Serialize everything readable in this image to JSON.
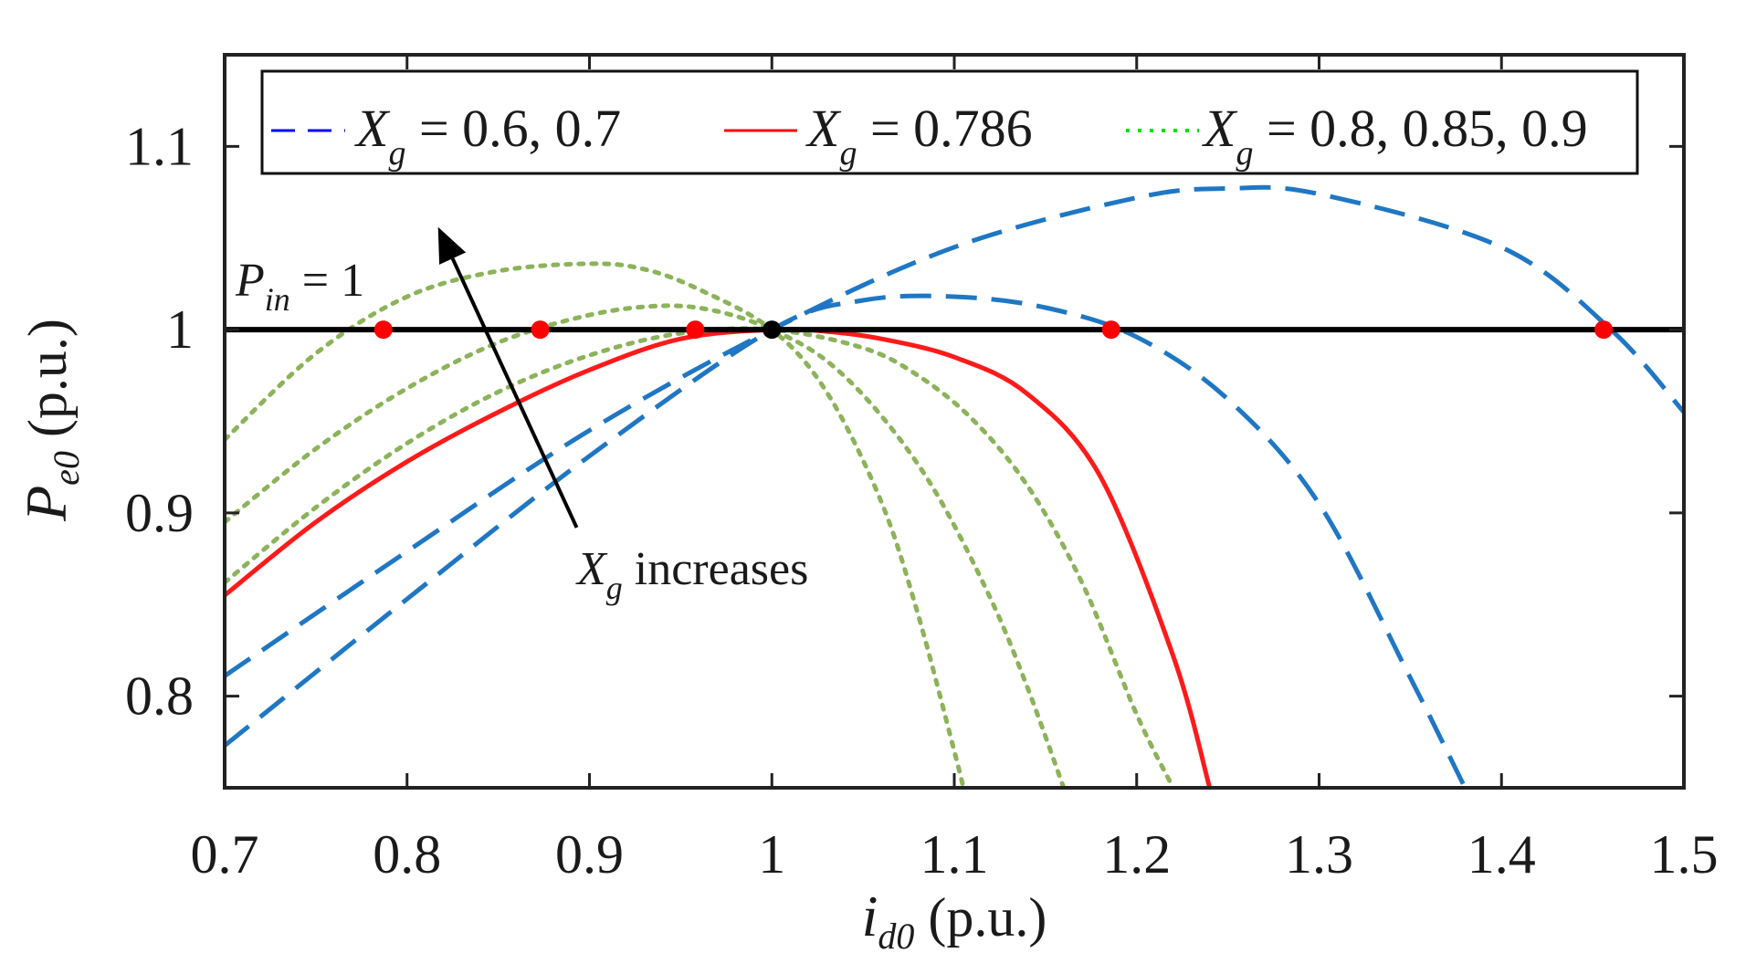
{
  "chart_data": {
    "type": "line",
    "xlabel": "i_d0 (p.u.)",
    "ylabel": "P_e0 (p.u.)",
    "xlim": [
      0.7,
      1.5
    ],
    "ylim": [
      0.75,
      1.15
    ],
    "x_ticks": [
      0.7,
      0.8,
      0.9,
      1.0,
      1.1,
      1.2,
      1.3,
      1.4,
      1.5
    ],
    "x_tick_labels": [
      "0.7",
      "0.8",
      "0.9",
      "1",
      "1.1",
      "1.2",
      "1.3",
      "1.4",
      "1.5"
    ],
    "y_ticks": [
      0.8,
      0.9,
      1.0,
      1.1
    ],
    "y_tick_labels": [
      "0.8",
      "0.9",
      "1",
      "1.1"
    ],
    "grid": false,
    "legend_position": "top",
    "legend": [
      {
        "label": "X_g = 0.6, 0.7",
        "main": "X",
        "sub": "g",
        "rest": " = 0.6, 0.7",
        "style": "dashed",
        "color": "#0000ff"
      },
      {
        "label": "X_g = 0.786",
        "main": "X",
        "sub": "g",
        "rest": " = 0.786",
        "style": "solid",
        "color": "#ff0000"
      },
      {
        "label": "X_g = 0.8, 0.85, 0.9",
        "main": "X",
        "sub": "g",
        "rest": " = 0.8, 0.85, 0.9",
        "style": "dotted",
        "color": "#00e000"
      }
    ],
    "series": [
      {
        "name": "X_g = 0.6",
        "style": "dashed",
        "color": "#1f77c4",
        "x": [
          0.7,
          0.8,
          0.9,
          1.0,
          1.1,
          1.2,
          1.25,
          1.3,
          1.4,
          1.46,
          1.5
        ],
        "y": [
          0.811,
          0.879,
          0.945,
          1.0,
          1.045,
          1.072,
          1.077,
          1.074,
          1.045,
          1.0,
          0.955
        ]
      },
      {
        "name": "X_g = 0.7",
        "style": "dashed",
        "color": "#1f77c4",
        "x": [
          0.7,
          0.8,
          0.9,
          1.0,
          1.05,
          1.1,
          1.15,
          1.2,
          1.25,
          1.3,
          1.35,
          1.38
        ],
        "y": [
          0.773,
          0.853,
          0.931,
          1.0,
          1.016,
          1.018,
          1.012,
          0.996,
          0.962,
          0.905,
          0.81,
          0.75
        ]
      },
      {
        "name": "X_g = 0.786",
        "style": "solid",
        "color": "#ff1a1a",
        "x": [
          0.7,
          0.75,
          0.8,
          0.85,
          0.9,
          0.95,
          1.0,
          1.03,
          1.06,
          1.1,
          1.14,
          1.18,
          1.22,
          1.24
        ],
        "y": [
          0.855,
          0.895,
          0.928,
          0.955,
          0.978,
          0.995,
          1.0,
          0.999,
          0.995,
          0.985,
          0.965,
          0.92,
          0.822,
          0.75
        ]
      },
      {
        "name": "X_g = 0.8",
        "style": "dotted",
        "color": "#8cb35a",
        "x": [
          0.7,
          0.75,
          0.8,
          0.85,
          0.9,
          0.95,
          1.0,
          1.05,
          1.08,
          1.11,
          1.14,
          1.17,
          1.2,
          1.22
        ],
        "y": [
          0.862,
          0.903,
          0.938,
          0.966,
          0.986,
          0.998,
          1.0,
          0.99,
          0.975,
          0.951,
          0.915,
          0.862,
          0.79,
          0.75
        ]
      },
      {
        "name": "X_g = 0.85",
        "style": "dotted",
        "color": "#8cb35a",
        "x": [
          0.7,
          0.75,
          0.8,
          0.85,
          0.9,
          0.94,
          0.97,
          1.0,
          1.03,
          1.06,
          1.09,
          1.12,
          1.14,
          1.16
        ],
        "y": [
          0.895,
          0.935,
          0.968,
          0.993,
          1.008,
          1.013,
          1.01,
          1.0,
          0.983,
          0.953,
          0.911,
          0.853,
          0.805,
          0.75
        ]
      },
      {
        "name": "X_g = 0.9",
        "style": "dotted",
        "color": "#8cb35a",
        "x": [
          0.7,
          0.75,
          0.8,
          0.85,
          0.9,
          0.93,
          0.96,
          1.0,
          1.03,
          1.06,
          1.08,
          1.1,
          1.105
        ],
        "y": [
          0.94,
          0.987,
          1.018,
          1.032,
          1.036,
          1.033,
          1.022,
          1.0,
          0.966,
          0.906,
          0.845,
          0.77,
          0.75
        ]
      },
      {
        "name": "P_in = 1",
        "style": "solid",
        "color": "#000000",
        "x": [
          0.7,
          1.5
        ],
        "y": [
          1.0,
          1.0
        ]
      }
    ],
    "points": [
      {
        "x": 0.787,
        "y": 1.0,
        "color": "#ff0000"
      },
      {
        "x": 0.873,
        "y": 1.0,
        "color": "#ff0000"
      },
      {
        "x": 0.958,
        "y": 1.0,
        "color": "#ff0000"
      },
      {
        "x": 1.0,
        "y": 1.0,
        "color": "#000000"
      },
      {
        "x": 1.186,
        "y": 1.0,
        "color": "#ff0000"
      },
      {
        "x": 1.456,
        "y": 1.0,
        "color": "#ff0000"
      }
    ],
    "annotations": [
      {
        "text": "P_in = 1",
        "main": "P",
        "sub": "in",
        "rest": " = 1",
        "x": 0.71,
        "y": 1.016
      },
      {
        "text": "X_g increases",
        "main": "X",
        "sub": "g",
        "rest": " increases",
        "x": 0.893,
        "y": 0.882,
        "arrow_from": [
          0.893,
          0.892
        ],
        "arrow_to": [
          0.817,
          1.056
        ]
      }
    ]
  }
}
